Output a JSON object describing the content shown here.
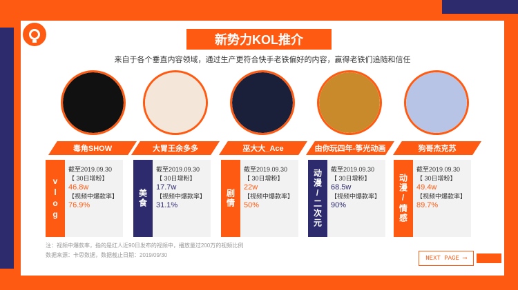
{
  "header": {
    "title": "新势力KOL推介",
    "subtitle": "来自于各个垂直内容领域，通过生产更符合快手老铁偏好的内容，赢得老铁们追随和信任"
  },
  "kols": [
    {
      "name": "毒角SHOW",
      "category": "vlog",
      "as_of": "截至2019.09.30",
      "fans_label": "【 30日增粉】",
      "fans": "46.8w",
      "rate_label": "【视频中爆款率】",
      "rate": "76.9%",
      "side_color": "#ff5a12"
    },
    {
      "name": "大胃王余多多",
      "category": "美食",
      "as_of": "截至2019.09.30",
      "fans_label": "【 30日增粉】",
      "fans": "17.7w",
      "rate_label": "【视频中爆款率】",
      "rate": "31.1%",
      "side_color": "#2d2a6e"
    },
    {
      "name": "巫大大_Ace",
      "category": "剧情",
      "as_of": "截至2019.09.30",
      "fans_label": "【 30日增粉】",
      "fans": "22w",
      "rate_label": "【视频中爆款率】",
      "rate": "50%",
      "side_color": "#ff5a12"
    },
    {
      "name": "由你玩四年-筝光动画",
      "category": "动漫/二次元",
      "as_of": "截至2019.09.30",
      "fans_label": "【 30日增粉】",
      "fans": "68.5w",
      "rate_label": "【视频中爆款率】",
      "rate": "90%",
      "side_color": "#2d2a6e"
    },
    {
      "name": "狗哥杰克苏",
      "category": "动漫/情感",
      "as_of": "截至2019.09.30",
      "fans_label": "【 30日增粉】",
      "fans": "49.4w",
      "rate_label": "【视频中爆款率】",
      "rate": "89.7%",
      "side_color": "#ff5a12"
    }
  ],
  "footer": {
    "note": "注：视频中爆款率，指的是红人近90日发布的视频中，播放量过200万的视频比例",
    "source": "数据来源：卡思数据，数据截止日期：2019/09/30"
  },
  "nav": {
    "next_label": "NEXT PAGE ⟶"
  },
  "colors": {
    "accent": "#ff5a12",
    "navy": "#2d2a6e"
  }
}
